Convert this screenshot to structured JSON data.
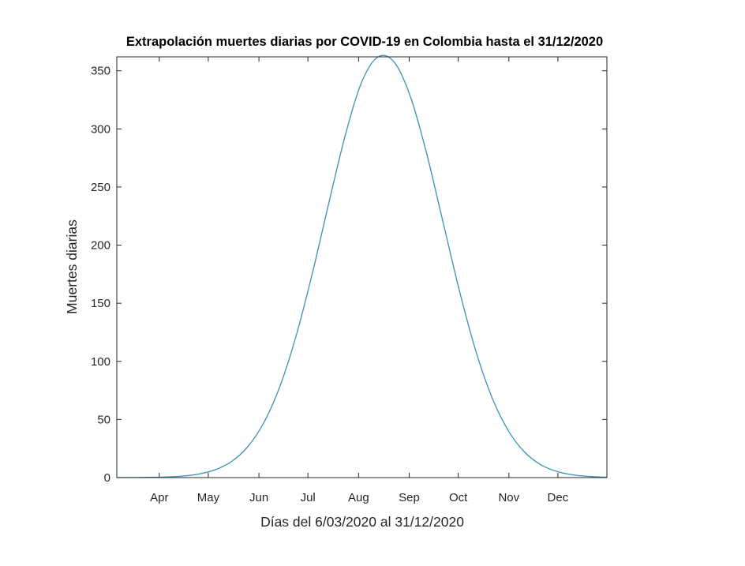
{
  "chart_data": {
    "type": "line",
    "title": "Extrapolación muertes diarias por COVID-19 en Colombia hasta el 31/12/2020",
    "xlabel": "Días del 6/03/2020 al 31/12/2020",
    "ylabel": "Muertes diarias",
    "xlim": [
      "2020-03-06",
      "2020-12-31"
    ],
    "ylim": [
      0,
      362
    ],
    "grid": false,
    "x_ticks": [
      {
        "date": "2020-04-01",
        "label": "Apr"
      },
      {
        "date": "2020-05-01",
        "label": "May"
      },
      {
        "date": "2020-06-01",
        "label": "Jun"
      },
      {
        "date": "2020-07-01",
        "label": "Jul"
      },
      {
        "date": "2020-08-01",
        "label": "Aug"
      },
      {
        "date": "2020-09-01",
        "label": "Sep"
      },
      {
        "date": "2020-10-01",
        "label": "Oct"
      },
      {
        "date": "2020-11-01",
        "label": "Nov"
      },
      {
        "date": "2020-12-01",
        "label": "Dec"
      }
    ],
    "y_ticks": [
      0,
      50,
      100,
      150,
      200,
      250,
      300,
      350
    ],
    "series": [
      {
        "color": "#3a8fb7",
        "points": [
          {
            "x": "2020-03-06",
            "y": 0.0
          },
          {
            "x": "2020-03-26",
            "y": 0.2
          },
          {
            "x": "2020-04-05",
            "y": 0.5
          },
          {
            "x": "2020-04-15",
            "y": 1.3
          },
          {
            "x": "2020-04-25",
            "y": 3.0
          },
          {
            "x": "2020-05-05",
            "y": 6.6
          },
          {
            "x": "2020-05-15",
            "y": 13.6
          },
          {
            "x": "2020-05-25",
            "y": 26.3
          },
          {
            "x": "2020-06-04",
            "y": 47.2
          },
          {
            "x": "2020-06-14",
            "y": 79.1
          },
          {
            "x": "2020-06-24",
            "y": 123.1
          },
          {
            "x": "2020-07-04",
            "y": 177.5
          },
          {
            "x": "2020-07-14",
            "y": 237.5
          },
          {
            "x": "2020-07-24",
            "y": 295.3
          },
          {
            "x": "2020-08-03",
            "y": 340.6
          },
          {
            "x": "2020-08-13",
            "y": 362.0
          },
          {
            "x": "2020-08-23",
            "y": 357.1
          },
          {
            "x": "2020-09-02",
            "y": 326.7
          },
          {
            "x": "2020-09-12",
            "y": 277.0
          },
          {
            "x": "2020-09-22",
            "y": 218.0
          },
          {
            "x": "2020-10-02",
            "y": 159.2
          },
          {
            "x": "2020-10-12",
            "y": 107.9
          },
          {
            "x": "2020-10-22",
            "y": 67.8
          },
          {
            "x": "2020-11-01",
            "y": 39.5
          },
          {
            "x": "2020-11-11",
            "y": 21.4
          },
          {
            "x": "2020-11-21",
            "y": 10.7
          },
          {
            "x": "2020-12-01",
            "y": 5.0
          },
          {
            "x": "2020-12-11",
            "y": 2.2
          },
          {
            "x": "2020-12-21",
            "y": 0.9
          },
          {
            "x": "2020-12-31",
            "y": 0.3
          }
        ]
      }
    ]
  }
}
